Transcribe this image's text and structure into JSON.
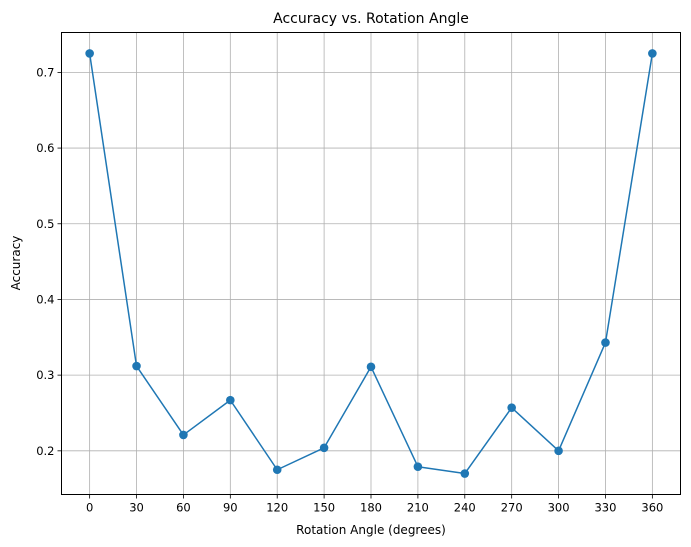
{
  "chart_data": {
    "type": "line",
    "title": "Accuracy vs. Rotation Angle",
    "xlabel": "Rotation Angle (degrees)",
    "ylabel": "Accuracy",
    "x": [
      0,
      30,
      60,
      90,
      120,
      150,
      180,
      210,
      240,
      270,
      300,
      330,
      360
    ],
    "series": [
      {
        "values": [
          0.725,
          0.312,
          0.221,
          0.267,
          0.175,
          0.204,
          0.311,
          0.179,
          0.17,
          0.257,
          0.2,
          0.343,
          0.725
        ],
        "color": "#1f77b4",
        "marker": "circle"
      }
    ],
    "xticks": [
      "0",
      "30",
      "60",
      "90",
      "120",
      "150",
      "180",
      "210",
      "240",
      "270",
      "300",
      "330",
      "360"
    ],
    "yticks": [
      "0.2",
      "0.3",
      "0.4",
      "0.5",
      "0.6",
      "0.7"
    ],
    "xlim": [
      -18,
      378
    ],
    "ylim": [
      0.1423,
      0.7527
    ],
    "grid": true
  }
}
